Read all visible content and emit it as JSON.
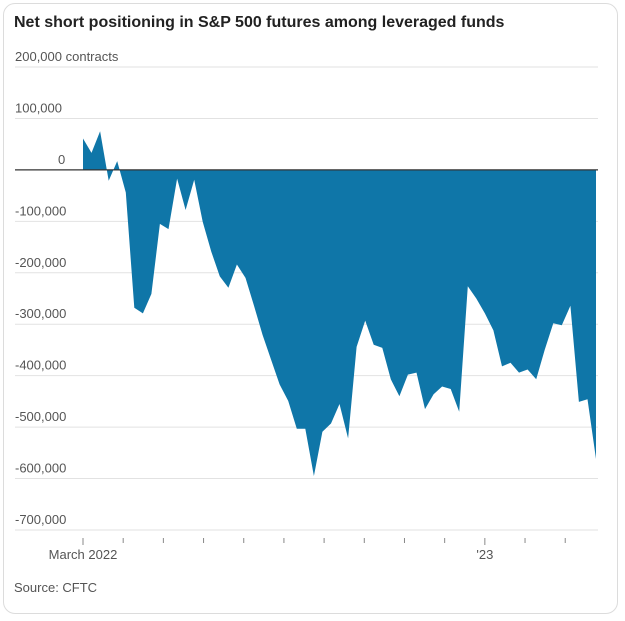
{
  "chart_data": {
    "type": "area",
    "title": "Net short positioning in S&P 500 futures among leveraged funds",
    "source": "Source: CFTC",
    "color": "#0f76a8",
    "categories": [
      "March 2022",
      null,
      null,
      null,
      null,
      null,
      null,
      null,
      null,
      null,
      null,
      null,
      null,
      null,
      null,
      null,
      null,
      null,
      null,
      null,
      null,
      null,
      null,
      null,
      null,
      null,
      null,
      null,
      null,
      null,
      null,
      null,
      null,
      null,
      null,
      null,
      null,
      null,
      null,
      null,
      null,
      null,
      null,
      null,
      null,
      null,
      null,
      "'23",
      null,
      null,
      null,
      null,
      null,
      null,
      null,
      null,
      null,
      null,
      null,
      null,
      null
    ],
    "values": [
      61000,
      33000,
      75000,
      -21000,
      17000,
      -44000,
      -268000,
      -279000,
      -241000,
      -105000,
      -115000,
      -17000,
      -78000,
      -19000,
      -101000,
      -159000,
      -207000,
      -229000,
      -184000,
      -210000,
      -264000,
      -321000,
      -369000,
      -417000,
      -449000,
      -503000,
      -503000,
      -595000,
      -509000,
      -493000,
      -455000,
      -522000,
      -344000,
      -293000,
      -340000,
      -346000,
      -407000,
      -440000,
      -398000,
      -394000,
      -465000,
      -436000,
      -421000,
      -426000,
      -470000,
      -226000,
      -250000,
      -279000,
      -312000,
      -382000,
      -375000,
      -394000,
      -388000,
      -407000,
      -350000,
      -298000,
      -302000,
      -264000,
      -451000,
      -446000,
      -562000
    ],
    "ylim": [
      -700000,
      200000
    ],
    "yticks": [
      {
        "value": -700000,
        "label": "-700,000"
      },
      {
        "value": -600000,
        "label": "-600,000"
      },
      {
        "value": -500000,
        "label": "-500,000"
      },
      {
        "value": -400000,
        "label": "-400,000"
      },
      {
        "value": -300000,
        "label": "-300,000"
      },
      {
        "value": -200000,
        "label": "-200,000"
      },
      {
        "value": -100000,
        "label": "-100,000"
      },
      0,
      {
        "value": 100000,
        "label": "100,000"
      },
      {
        "value": 200000,
        "label": "200,000 contracts"
      }
    ],
    "grid": true
  }
}
